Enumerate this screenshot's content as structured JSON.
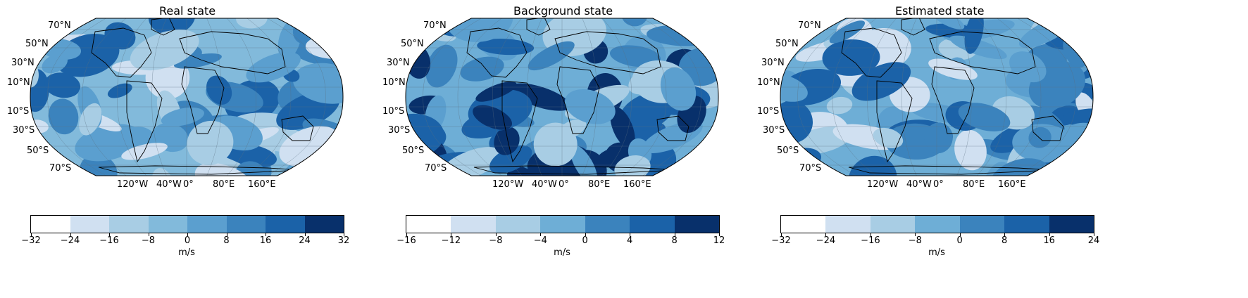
{
  "panels": [
    {
      "title": "Real state",
      "lat_labels": [
        "70°N",
        "50°N",
        "30°N",
        "10°N",
        "10°S",
        "30°S",
        "50°S",
        "70°S"
      ],
      "lon_labels": [
        "120°W",
        "40°W",
        "0°",
        "80°E",
        "160°E"
      ],
      "colorbar": {
        "ticks": [
          "−32",
          "−24",
          "−16",
          "−8",
          "0",
          "8",
          "16",
          "24",
          "32"
        ],
        "colors": [
          "#ffffff",
          "#d0e0f1",
          "#a8cde4",
          "#82badb",
          "#5b9fcf",
          "#3b83bd",
          "#1b62a8",
          "#08306b"
        ],
        "unit": "m/s"
      },
      "palette": [
        "#82badb",
        "#5b9fcf",
        "#3b83bd",
        "#a8cde4",
        "#d0e0f1",
        "#1b62a8"
      ]
    },
    {
      "title": "Background state",
      "lat_labels": [
        "70°N",
        "50°N",
        "30°N",
        "10°N",
        "10°S",
        "30°S",
        "50°S",
        "70°S"
      ],
      "lon_labels": [
        "120°W",
        "40°W",
        "0°",
        "80°E",
        "160°E"
      ],
      "colorbar": {
        "ticks": [
          "−16",
          "−12",
          "−8",
          "−4",
          "0",
          "4",
          "8",
          "12"
        ],
        "colors": [
          "#ffffff",
          "#d0e0f1",
          "#a8cde4",
          "#6eaed6",
          "#3b83bd",
          "#1b62a8",
          "#08306b"
        ],
        "unit": "m/s"
      },
      "palette": [
        "#6eaed6",
        "#3b83bd",
        "#1b62a8",
        "#a8cde4",
        "#5b9fcf",
        "#08306b"
      ]
    },
    {
      "title": "Estimated state",
      "lat_labels": [
        "70°N",
        "50°N",
        "30°N",
        "10°N",
        "10°S",
        "30°S",
        "50°S",
        "70°S"
      ],
      "lon_labels": [
        "120°W",
        "40°W",
        "0°",
        "80°E",
        "160°E"
      ],
      "colorbar": {
        "ticks": [
          "−32",
          "−24",
          "−16",
          "−8",
          "0",
          "8",
          "16",
          "24"
        ],
        "colors": [
          "#ffffff",
          "#d0e0f1",
          "#a8cde4",
          "#6eaed6",
          "#3b83bd",
          "#1b62a8",
          "#08306b"
        ],
        "unit": "m/s"
      },
      "palette": [
        "#6eaed6",
        "#3b83bd",
        "#1b62a8",
        "#a8cde4",
        "#d0e0f1",
        "#5b9fcf"
      ]
    }
  ]
}
